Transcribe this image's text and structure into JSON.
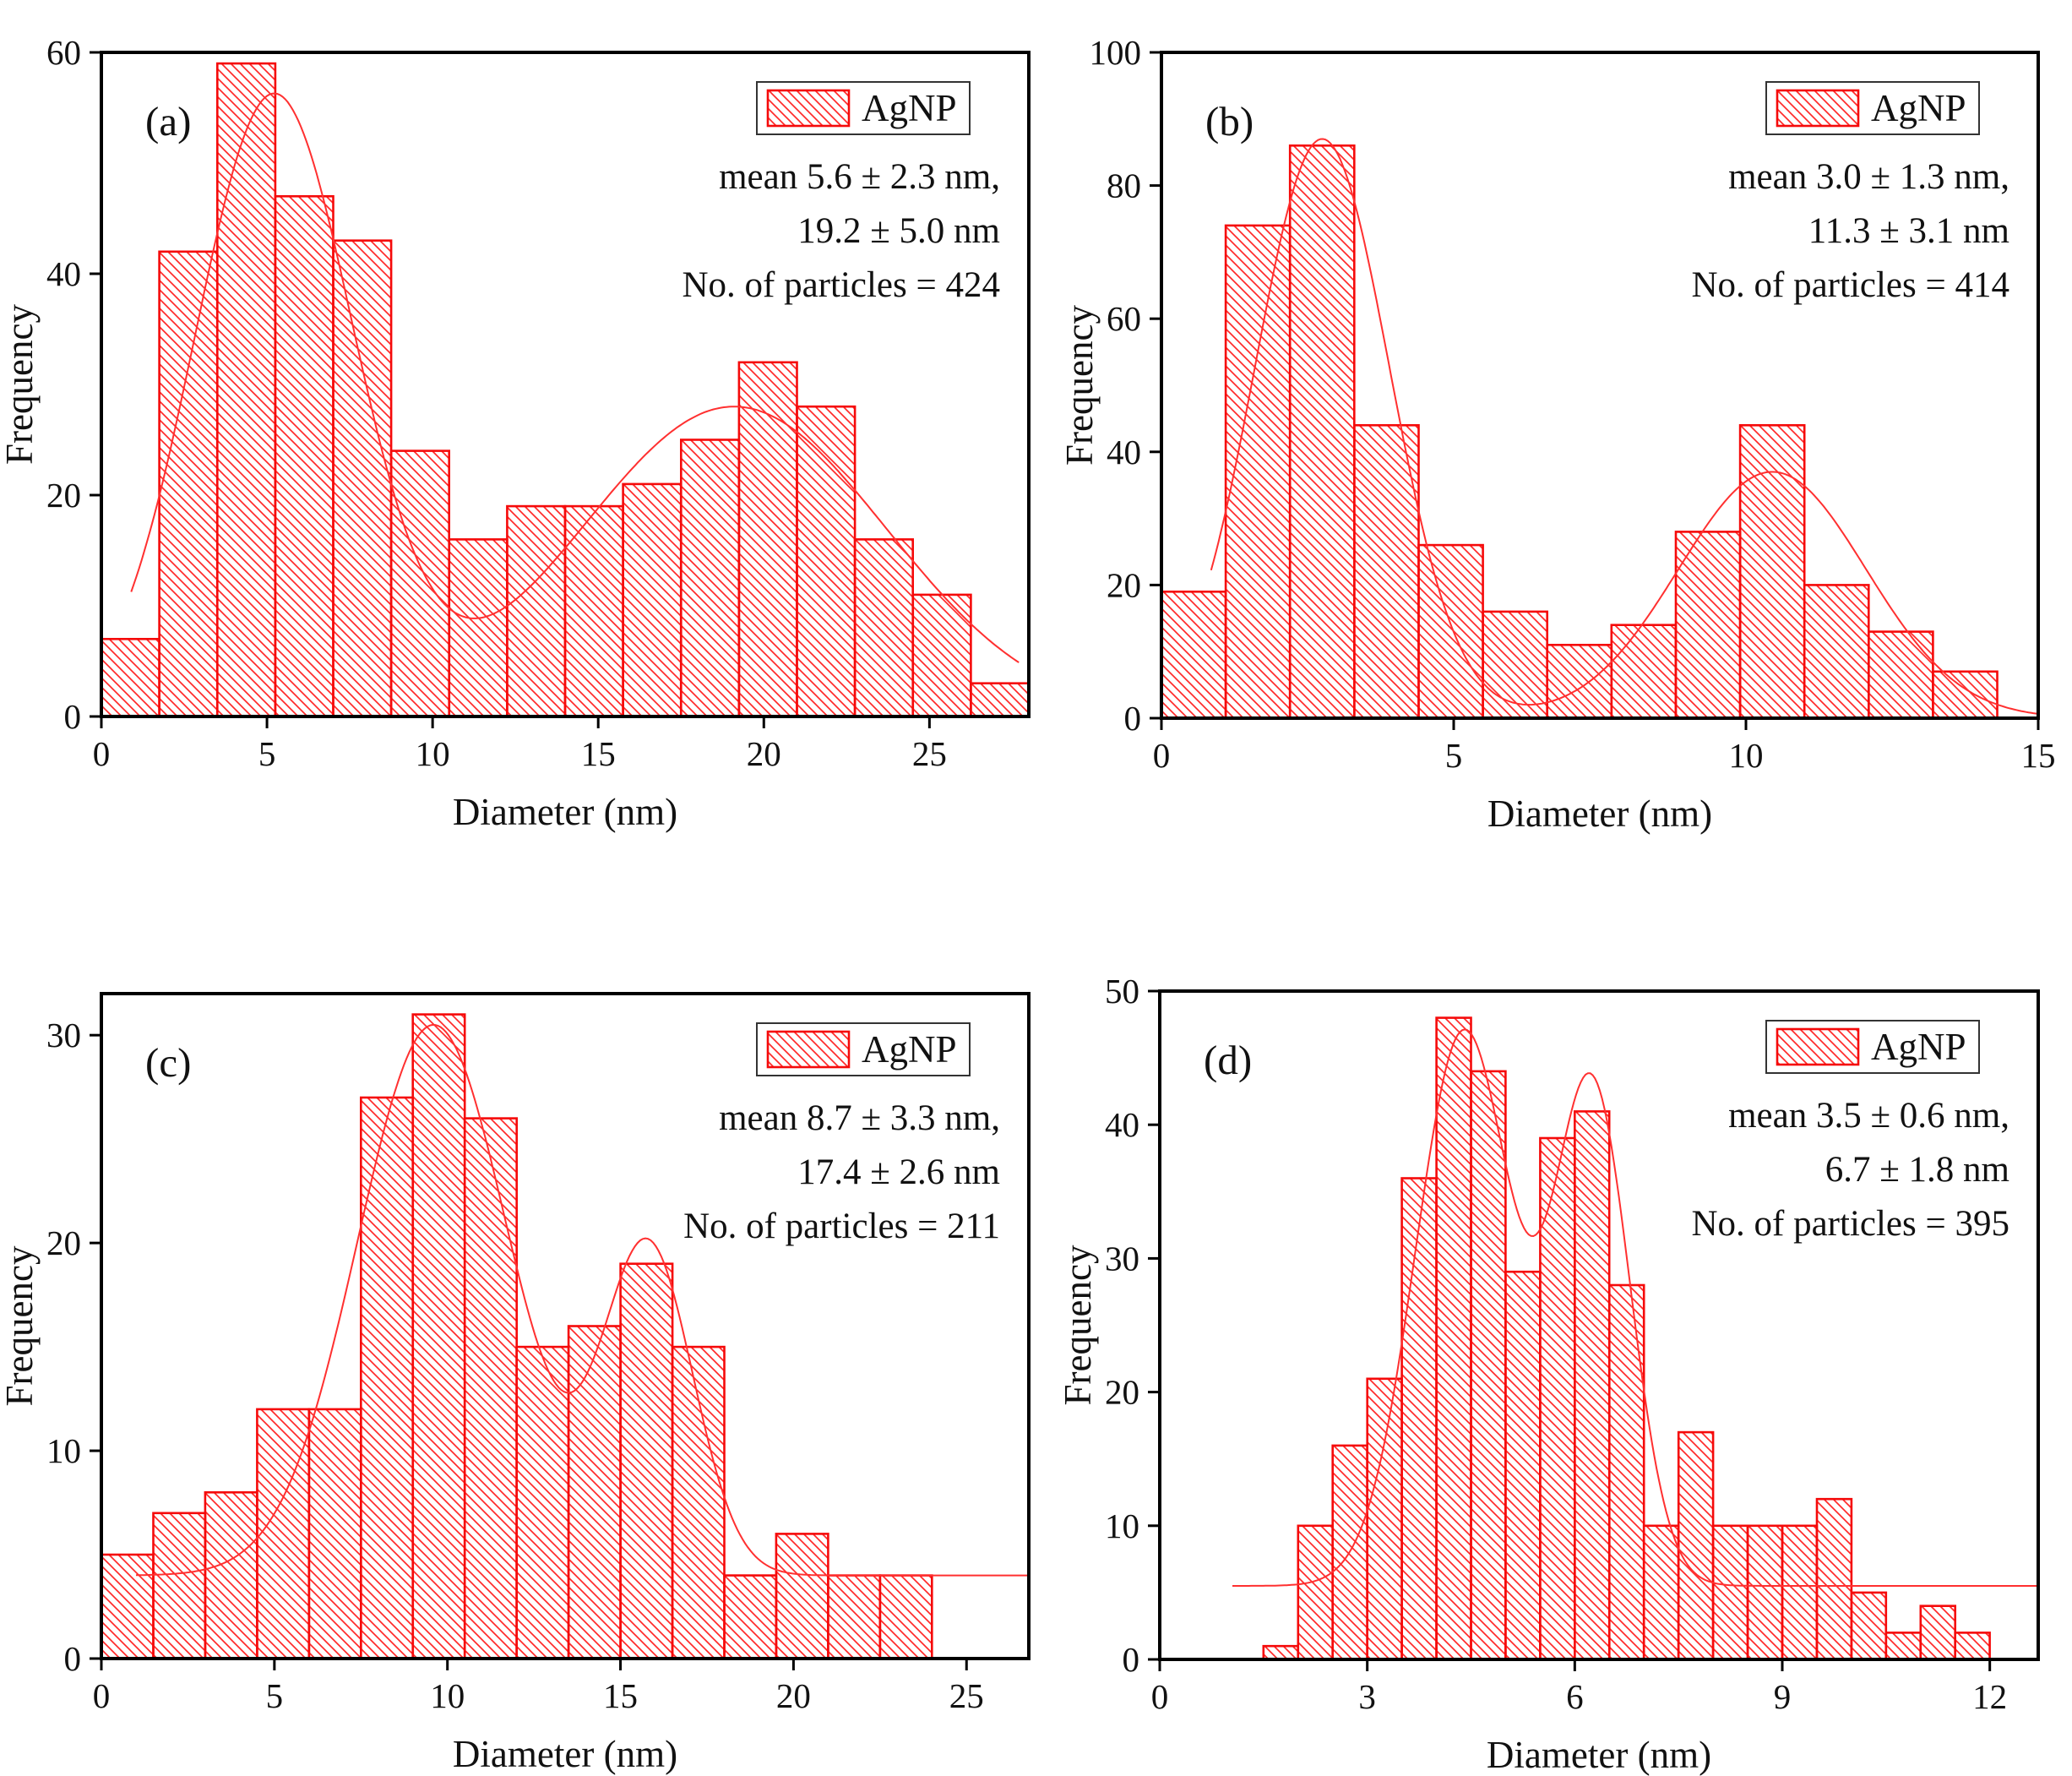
{
  "figure_title": "",
  "series_label": "AgNP",
  "colors": {
    "bar_outline": "#f50a0a",
    "bar_hatch": "#ff2a2a",
    "curve": "#ff3030",
    "axis": "#000000",
    "text": "#111111",
    "legend_border": "#333333",
    "background": "#ffffff"
  },
  "chart_data": [
    {
      "type": "bar",
      "panel_label": "(a)",
      "legend": "AgNP",
      "annotation_lines": [
        "mean 5.6 ± 2.3 nm,",
        "19.2 ± 5.0 nm",
        "No. of particles = 424"
      ],
      "xlabel": "Diameter (nm)",
      "ylabel": "Frequency",
      "bin_start": 0,
      "bin_width": 1.75,
      "values": [
        7,
        42,
        59,
        47,
        43,
        24,
        16,
        19,
        19,
        21,
        25,
        32,
        28,
        16,
        11,
        3
      ],
      "xlim": [
        0,
        28
      ],
      "ylim": [
        0,
        60
      ],
      "xticks": [
        0,
        5,
        10,
        15,
        20,
        25
      ],
      "yticks": [
        0,
        20,
        40,
        60
      ],
      "curve": {
        "baseline": 0,
        "x_start": 0.9,
        "x_end": 27.7,
        "components": [
          {
            "amp": 56,
            "mean": 5.2,
            "sd": 2.4
          },
          {
            "amp": 28,
            "mean": 19.1,
            "sd": 4.6
          }
        ]
      }
    },
    {
      "type": "bar",
      "panel_label": "(b)",
      "legend": "AgNP",
      "annotation_lines": [
        "mean 3.0 ± 1.3 nm,",
        "11.3 ± 3.1 nm",
        "No. of particles = 414"
      ],
      "xlabel": "Diameter (nm)",
      "ylabel": "Frequency",
      "bin_start": 0,
      "bin_width": 1.1,
      "values": [
        19,
        74,
        86,
        44,
        26,
        16,
        11,
        14,
        28,
        44,
        20,
        13,
        7
      ],
      "xlim": [
        0,
        15
      ],
      "ylim": [
        0,
        100
      ],
      "xticks": [
        0,
        5,
        10,
        15
      ],
      "yticks": [
        0,
        20,
        40,
        60,
        80,
        100
      ],
      "curve": {
        "baseline": 0,
        "x_start": 0.85,
        "x_end": 15,
        "components": [
          {
            "amp": 87,
            "mean": 2.75,
            "sd": 1.15
          },
          {
            "amp": 37,
            "mean": 10.45,
            "sd": 1.6
          }
        ]
      }
    },
    {
      "type": "bar",
      "panel_label": "(c)",
      "legend": "AgNP",
      "annotation_lines": [
        "mean 8.7 ± 3.3 nm,",
        "17.4 ± 2.6 nm",
        "No. of particles = 211"
      ],
      "xlabel": "Diameter (nm)",
      "ylabel": "Frequency",
      "bin_start": 0,
      "bin_width": 1.5,
      "values": [
        5,
        7,
        8,
        12,
        12,
        27,
        31,
        26,
        15,
        16,
        19,
        15,
        4,
        6,
        4,
        4
      ],
      "xlim": [
        0,
        26.8
      ],
      "ylim": [
        0,
        32
      ],
      "xticks": [
        0,
        5,
        10,
        15,
        20,
        25
      ],
      "yticks": [
        0,
        10,
        20,
        30
      ],
      "curve": {
        "baseline": 4,
        "x_start": 1.0,
        "x_end": 26.8,
        "components": [
          {
            "amp": 26.5,
            "mean": 9.6,
            "sd": 2.2
          },
          {
            "amp": 15.7,
            "mean": 15.8,
            "sd": 1.3
          }
        ]
      }
    },
    {
      "type": "bar",
      "panel_label": "(d)",
      "legend": "AgNP",
      "annotation_lines": [
        "mean 3.5 ± 0.6 nm,",
        "6.7 ± 1.8 nm",
        "No. of particles = 395"
      ],
      "xlabel": "Diameter (nm)",
      "ylabel": "Frequency",
      "bin_start": 1.5,
      "bin_width": 0.5,
      "values": [
        1,
        10,
        16,
        21,
        36,
        48,
        44,
        29,
        39,
        41,
        28,
        10,
        17,
        10,
        10,
        10,
        12,
        5,
        2,
        4,
        2
      ],
      "xlim": [
        0,
        12.7
      ],
      "ylim": [
        0,
        50
      ],
      "xticks": [
        0,
        3,
        6,
        9,
        12
      ],
      "yticks": [
        0,
        10,
        20,
        30,
        40,
        50
      ],
      "curve": {
        "baseline": 5.5,
        "x_start": 1.05,
        "x_end": 12.7,
        "components": [
          {
            "amp": 41.5,
            "mean": 4.4,
            "sd": 0.7
          },
          {
            "amp": 37,
            "mean": 6.25,
            "sd": 0.55
          }
        ]
      }
    }
  ]
}
